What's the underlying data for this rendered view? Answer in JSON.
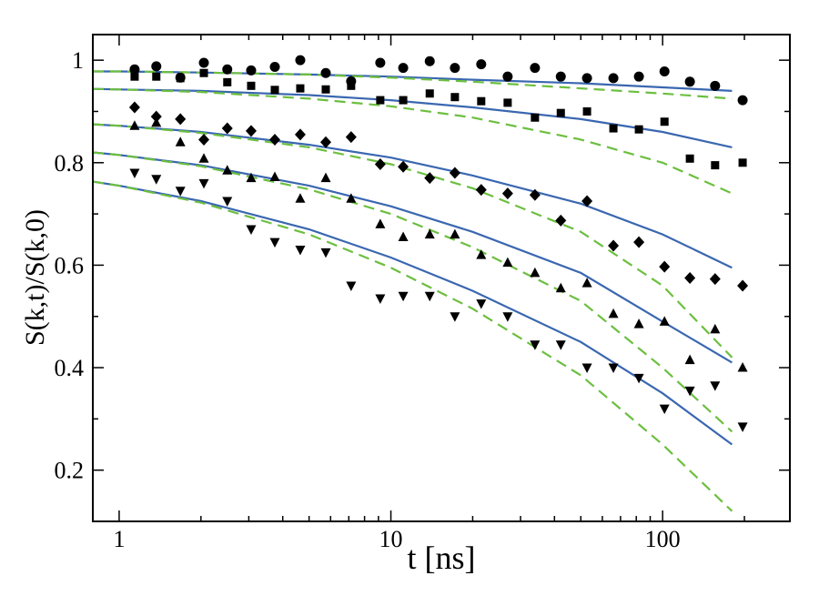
{
  "chart_data": {
    "type": "scatter",
    "xlabel": "t [ns]",
    "ylabel": "S(k,t)/S(k,0)",
    "xscale": "log",
    "xlim": [
      0.8,
      294
    ],
    "ylim": [
      0.1,
      1.05
    ],
    "xticks": [
      1,
      10,
      100
    ],
    "xminorticks": [
      2,
      3,
      4,
      5,
      6,
      7,
      8,
      9,
      20,
      30,
      40,
      50,
      60,
      70,
      80,
      90,
      200
    ],
    "yticks": [
      0.2,
      0.4,
      0.6,
      0.8,
      1
    ],
    "yminorticks": [
      0.3,
      0.5,
      0.7,
      0.9
    ],
    "x": [
      1.14,
      1.37,
      1.68,
      2.05,
      2.5,
      3.06,
      3.74,
      4.64,
      5.76,
      7.14,
      9.14,
      11.1,
      13.9,
      17.2,
      21.5,
      26.9,
      33.9,
      42.2,
      52.7,
      65.9,
      81.8,
      101.6,
      126,
      156,
      197
    ],
    "series": [
      {
        "marker": "circle",
        "color": "#000000",
        "values": [
          0.982,
          0.988,
          0.966,
          0.995,
          0.982,
          0.98,
          0.987,
          1.0,
          0.975,
          0.959,
          0.995,
          0.985,
          0.998,
          0.985,
          0.992,
          0.968,
          0.985,
          0.968,
          0.965,
          0.965,
          0.968,
          0.978,
          0.958,
          0.95,
          0.922
        ]
      },
      {
        "marker": "square",
        "color": "#000000",
        "values": [
          0.968,
          0.968,
          0.965,
          0.975,
          0.957,
          0.95,
          0.942,
          0.945,
          0.943,
          0.95,
          0.922,
          0.922,
          0.935,
          0.928,
          0.92,
          0.917,
          0.888,
          0.897,
          0.9,
          0.867,
          0.865,
          0.88,
          0.808,
          0.795,
          0.8
        ]
      },
      {
        "marker": "diamond",
        "color": "#000000",
        "values": [
          0.908,
          0.89,
          0.885,
          0.845,
          0.867,
          0.862,
          0.845,
          0.855,
          0.84,
          0.85,
          0.797,
          0.792,
          0.77,
          0.78,
          0.747,
          0.74,
          0.737,
          0.687,
          0.725,
          0.638,
          0.645,
          0.597,
          0.575,
          0.573,
          0.56
        ]
      },
      {
        "marker": "triangle-up",
        "color": "#000000",
        "values": [
          0.872,
          0.878,
          0.84,
          0.808,
          0.785,
          0.77,
          0.772,
          0.73,
          0.77,
          0.73,
          0.68,
          0.655,
          0.66,
          0.66,
          0.62,
          0.605,
          0.585,
          0.555,
          0.565,
          0.505,
          0.485,
          0.49,
          0.415,
          0.475,
          0.4
        ]
      },
      {
        "marker": "triangle-down",
        "color": "#000000",
        "values": [
          0.78,
          0.768,
          0.745,
          0.76,
          0.725,
          0.67,
          0.645,
          0.63,
          0.625,
          0.56,
          0.535,
          0.54,
          0.54,
          0.5,
          0.525,
          0.5,
          0.445,
          0.445,
          0.4,
          0.4,
          0.38,
          0.32,
          0.355,
          0.365,
          0.285
        ]
      }
    ],
    "line_x": [
      0.8,
      1,
      2,
      5,
      10,
      20,
      50,
      100,
      180
    ],
    "lines": [
      {
        "color": "#3a67b0",
        "dashed": false,
        "values": [
          0.978,
          0.978,
          0.976,
          0.972,
          0.968,
          0.962,
          0.955,
          0.947,
          0.94
        ]
      },
      {
        "color": "#3a67b0",
        "dashed": false,
        "values": [
          0.944,
          0.943,
          0.94,
          0.932,
          0.922,
          0.908,
          0.885,
          0.86,
          0.83
        ]
      },
      {
        "color": "#3a67b0",
        "dashed": false,
        "values": [
          0.875,
          0.872,
          0.86,
          0.835,
          0.81,
          0.775,
          0.72,
          0.66,
          0.595
        ]
      },
      {
        "color": "#3a67b0",
        "dashed": false,
        "values": [
          0.82,
          0.815,
          0.795,
          0.755,
          0.715,
          0.665,
          0.585,
          0.49,
          0.41
        ]
      },
      {
        "color": "#3a67b0",
        "dashed": false,
        "values": [
          0.763,
          0.755,
          0.725,
          0.67,
          0.615,
          0.55,
          0.45,
          0.35,
          0.25
        ]
      },
      {
        "color": "#6cbf3f",
        "dashed": true,
        "values": [
          0.978,
          0.978,
          0.976,
          0.972,
          0.966,
          0.958,
          0.945,
          0.935,
          0.925
        ]
      },
      {
        "color": "#6cbf3f",
        "dashed": true,
        "values": [
          0.944,
          0.943,
          0.938,
          0.925,
          0.91,
          0.888,
          0.845,
          0.8,
          0.74
        ]
      },
      {
        "color": "#6cbf3f",
        "dashed": true,
        "values": [
          0.875,
          0.872,
          0.858,
          0.83,
          0.797,
          0.75,
          0.665,
          0.56,
          0.42
        ]
      },
      {
        "color": "#6cbf3f",
        "dashed": true,
        "values": [
          0.82,
          0.815,
          0.793,
          0.748,
          0.7,
          0.635,
          0.53,
          0.4,
          0.275
        ]
      },
      {
        "color": "#6cbf3f",
        "dashed": true,
        "values": [
          0.763,
          0.755,
          0.722,
          0.66,
          0.595,
          0.515,
          0.385,
          0.25,
          0.12
        ]
      }
    ]
  }
}
